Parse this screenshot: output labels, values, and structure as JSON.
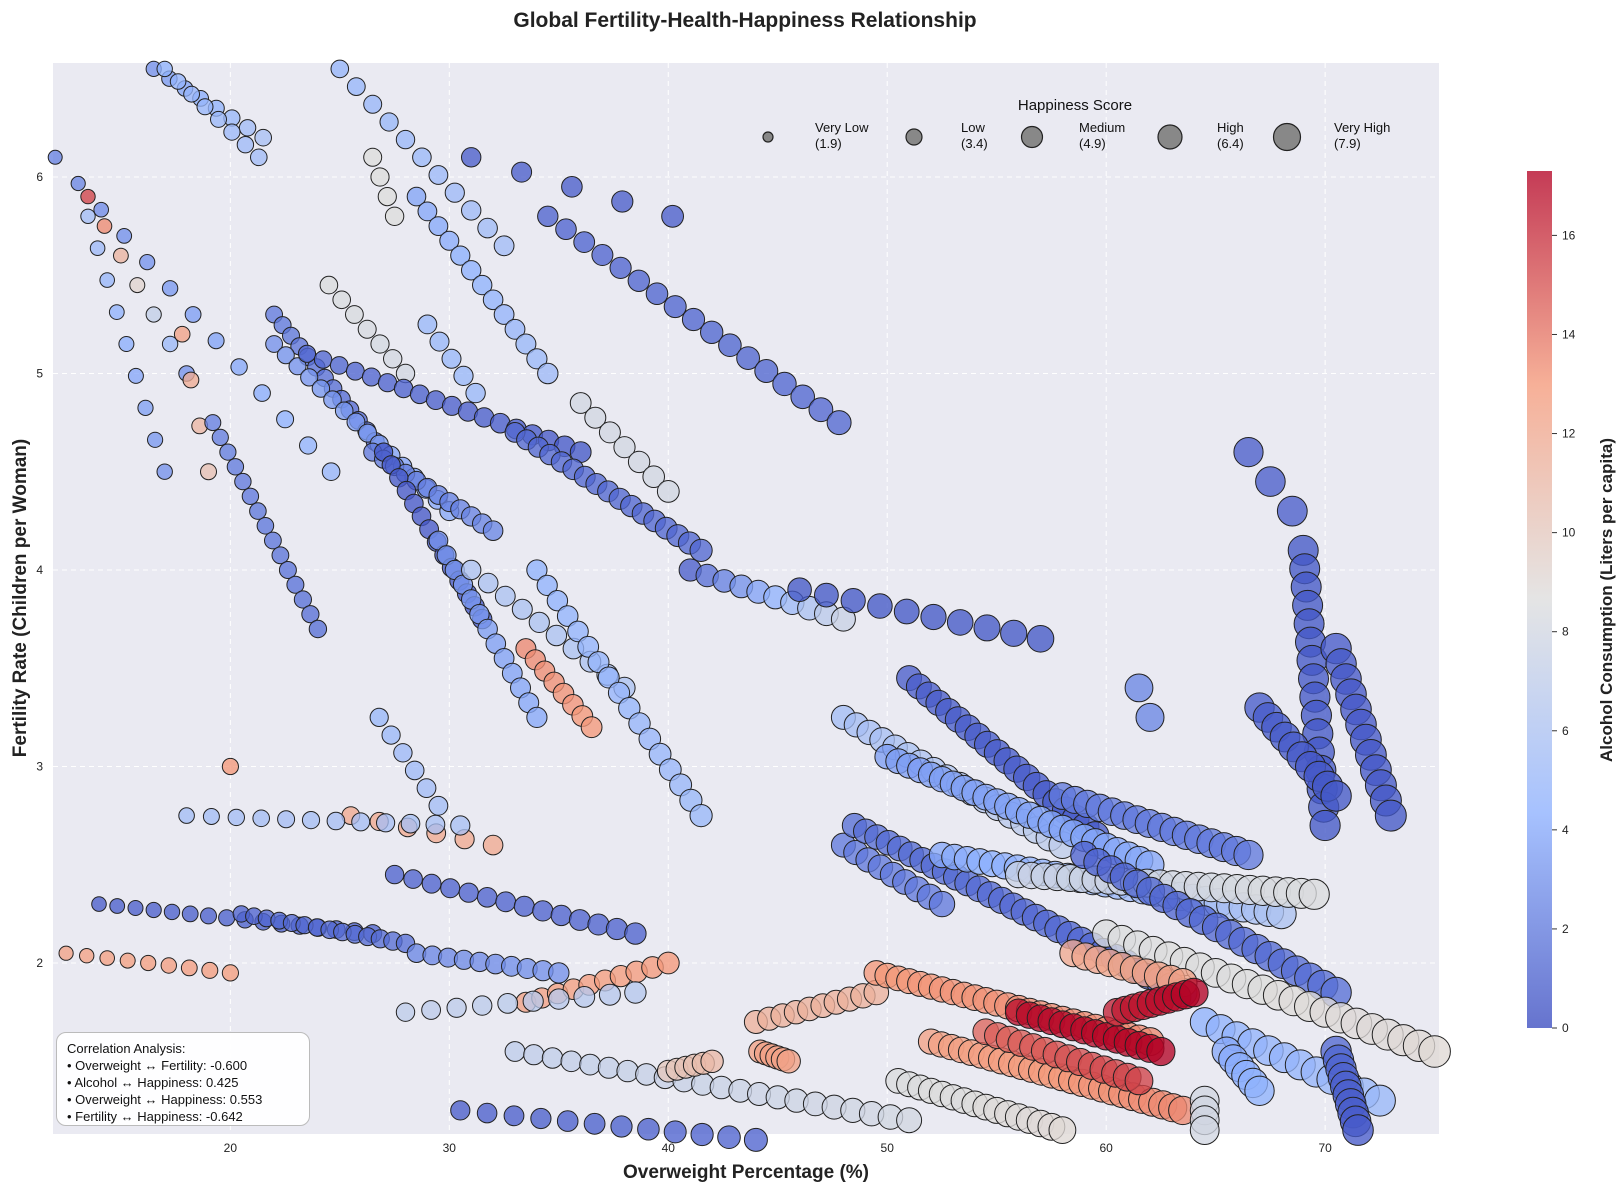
{
  "chart_data": {
    "type": "scatter",
    "title": "Global Fertility-Health-Happiness Relationship",
    "xlabel": "Overweight Percentage (%)",
    "ylabel": "Fertility Rate (Children per Woman)",
    "xlim": [
      11.9,
      75.2
    ],
    "ylim": [
      1.13,
      6.58
    ],
    "x_ticks": [
      20,
      30,
      40,
      50,
      60,
      70
    ],
    "y_ticks": [
      2,
      3,
      4,
      5,
      6
    ],
    "grid": true,
    "color_encoding": {
      "label": "Alcohol Consumption (Liters per capita)",
      "colormap": "coolwarm",
      "range": [
        0,
        17.3
      ],
      "ticks": [
        0,
        2,
        4,
        6,
        8,
        10,
        12,
        14,
        16
      ]
    },
    "size_legend": {
      "title": "Happiness Score",
      "placement": "top-right",
      "entries": [
        {
          "label": "Very Low",
          "value": "(1.9)"
        },
        {
          "label": "Low",
          "value": "(3.4)"
        },
        {
          "label": "Medium",
          "value": "(4.9)"
        },
        {
          "label": "High",
          "value": "(6.4)"
        },
        {
          "label": "Very High",
          "value": "(7.9)"
        }
      ]
    },
    "correlation_box": {
      "title": "Correlation Analysis:",
      "lines": [
        "• Overweight ↔ Fertility: -0.600",
        "• Alcohol ↔ Happiness: 0.425",
        "• Overweight ↔ Happiness: 0.553",
        "• Fertility ↔ Happiness: -0.642"
      ]
    },
    "tracks": [
      [
        12.0,
        6.1,
        24.6,
        4.5,
        2.3,
        4.8,
        13
      ],
      [
        13.5,
        5.9,
        18.0,
        5.0,
        15.5,
        3.0,
        7
      ],
      [
        13.5,
        5.8,
        17.0,
        4.5,
        5.5,
        3.0,
        9
      ],
      [
        16.5,
        6.55,
        21.5,
        6.2,
        3.0,
        5.8,
        8
      ],
      [
        17.0,
        6.55,
        21.3,
        6.1,
        4.5,
        5.4,
        8
      ],
      [
        25.0,
        6.55,
        32.5,
        5.65,
        4.8,
        5.4,
        11
      ],
      [
        31.0,
        6.1,
        40.2,
        5.8,
        0.8,
        0.8,
        5
      ],
      [
        34.5,
        5.8,
        47.8,
        4.75,
        1.0,
        1.2,
        17
      ],
      [
        28.5,
        5.9,
        34.5,
        5.0,
        3.8,
        5.2,
        13
      ],
      [
        29.0,
        5.25,
        31.2,
        4.9,
        5.0,
        5.0,
        5
      ],
      [
        24.5,
        5.45,
        28.0,
        5.0,
        8.5,
        8.0,
        7
      ],
      [
        26.5,
        6.1,
        27.5,
        5.8,
        8.6,
        8.6,
        4
      ],
      [
        17.8,
        5.2,
        19.0,
        4.5,
        12.5,
        10.5,
        4
      ],
      [
        22.0,
        5.3,
        27.0,
        4.6,
        2.0,
        1.0,
        14
      ],
      [
        22.0,
        5.15,
        30.0,
        4.3,
        3.0,
        4.0,
        16
      ],
      [
        23.5,
        5.1,
        36.0,
        4.6,
        1.2,
        0.5,
        18
      ],
      [
        26.5,
        4.6,
        32.0,
        4.2,
        2.0,
        2.5,
        12
      ],
      [
        33.0,
        4.7,
        41.5,
        4.1,
        1.2,
        1.2,
        17
      ],
      [
        36.0,
        4.85,
        40.0,
        4.4,
        8.0,
        8.0,
        7
      ],
      [
        41.0,
        4.0,
        48.0,
        3.75,
        0.8,
        7.5,
        10
      ],
      [
        46.0,
        3.9,
        57.0,
        3.65,
        0.5,
        0.5,
        10
      ],
      [
        19.2,
        4.75,
        24.0,
        3.7,
        2.2,
        1.5,
        15
      ],
      [
        27.0,
        4.6,
        31.5,
        3.75,
        0.6,
        0.5,
        14
      ],
      [
        29.5,
        4.15,
        34.0,
        3.25,
        3.0,
        4.0,
        13
      ],
      [
        31.0,
        4.0,
        38.0,
        3.4,
        6.0,
        6.0,
        10
      ],
      [
        34.0,
        4.0,
        41.5,
        2.75,
        4.5,
        5.0,
        17
      ],
      [
        26.8,
        3.25,
        29.5,
        2.8,
        5.0,
        5.5,
        6
      ],
      [
        20.0,
        3.0,
        20.0,
        3.0,
        13.0,
        13.0,
        1
      ],
      [
        33.5,
        3.6,
        36.5,
        3.2,
        13.5,
        13.0,
        8
      ],
      [
        25.5,
        2.75,
        32.0,
        2.6,
        12.0,
        12.0,
        6
      ],
      [
        18.0,
        2.75,
        30.5,
        2.7,
        5.5,
        5.8,
        12
      ],
      [
        12.5,
        2.05,
        20.0,
        1.95,
        12.5,
        12.8,
        9
      ],
      [
        14.0,
        2.3,
        26.5,
        2.15,
        0.8,
        1.0,
        16
      ],
      [
        20.5,
        2.25,
        28.0,
        2.1,
        1.0,
        1.5,
        14
      ],
      [
        27.5,
        2.45,
        38.5,
        2.15,
        1.0,
        1.0,
        14
      ],
      [
        28.5,
        2.05,
        35.0,
        1.95,
        2.5,
        3.0,
        10
      ],
      [
        33.5,
        1.8,
        40.0,
        2.0,
        12.5,
        13.0,
        10
      ],
      [
        28.0,
        1.75,
        38.5,
        1.85,
        7.0,
        6.5,
        10
      ],
      [
        33.0,
        1.55,
        51.0,
        1.2,
        7.0,
        8.0,
        22
      ],
      [
        30.5,
        1.25,
        44.0,
        1.1,
        0.8,
        1.0,
        12
      ],
      [
        40.0,
        1.45,
        42.0,
        1.5,
        10.0,
        11.0,
        6
      ],
      [
        44.0,
        1.7,
        49.5,
        1.85,
        11.5,
        11.5,
        10
      ],
      [
        44.2,
        1.55,
        45.5,
        1.5,
        12.5,
        12.5,
        6
      ],
      [
        48.0,
        2.6,
        52.5,
        2.3,
        2.0,
        2.0,
        9
      ],
      [
        48.5,
        2.7,
        63.5,
        1.85,
        1.5,
        1.0,
        30
      ],
      [
        51.0,
        3.45,
        59.5,
        2.65,
        0.8,
        0.6,
        20
      ],
      [
        48.0,
        3.25,
        58.0,
        2.6,
        5.5,
        7.0,
        18
      ],
      [
        50.0,
        3.05,
        62.0,
        2.5,
        3.5,
        4.0,
        25
      ],
      [
        52.5,
        2.55,
        68.0,
        2.25,
        4.0,
        6.0,
        28
      ],
      [
        56.0,
        2.45,
        69.5,
        2.35,
        7.5,
        8.5,
        24
      ],
      [
        58.0,
        2.85,
        66.5,
        2.55,
        2.0,
        2.0,
        16
      ],
      [
        59.0,
        2.55,
        70.5,
        1.85,
        1.0,
        1.5,
        20
      ],
      [
        60.0,
        2.15,
        75.0,
        1.55,
        8.5,
        9.0,
        22
      ],
      [
        49.5,
        1.95,
        62.0,
        1.6,
        13.0,
        13.5,
        26
      ],
      [
        52.0,
        1.6,
        63.5,
        1.25,
        12.5,
        13.5,
        26
      ],
      [
        56.0,
        1.75,
        62.5,
        1.55,
        17.0,
        17.3,
        14
      ],
      [
        54.5,
        1.65,
        61.5,
        1.4,
        14.5,
        15.5,
        14
      ],
      [
        50.5,
        1.4,
        58.0,
        1.15,
        8.5,
        9.0,
        16
      ],
      [
        58.5,
        2.05,
        63.5,
        1.9,
        12.0,
        12.5,
        10
      ],
      [
        60.5,
        1.75,
        64.0,
        1.85,
        16.5,
        17.3,
        10
      ],
      [
        64.5,
        1.7,
        72.5,
        1.3,
        4.5,
        5.0,
        12
      ],
      [
        64.5,
        1.3,
        64.5,
        1.15,
        8.0,
        8.0,
        4
      ],
      [
        66.5,
        4.6,
        68.5,
        4.3,
        0.8,
        0.8,
        3
      ],
      [
        69.0,
        4.1,
        70.0,
        2.7,
        0.5,
        0.5,
        16
      ],
      [
        70.5,
        3.6,
        73.0,
        2.75,
        0.6,
        0.5,
        12
      ],
      [
        67.0,
        3.3,
        70.5,
        2.85,
        0.7,
        0.5,
        10
      ],
      [
        70.5,
        1.55,
        71.5,
        1.15,
        1.2,
        0.6,
        10
      ],
      [
        65.5,
        1.55,
        67.0,
        1.35,
        4.0,
        4.5,
        6
      ],
      [
        61.5,
        3.4,
        62.0,
        3.25,
        2.5,
        2.5,
        2
      ]
    ]
  }
}
